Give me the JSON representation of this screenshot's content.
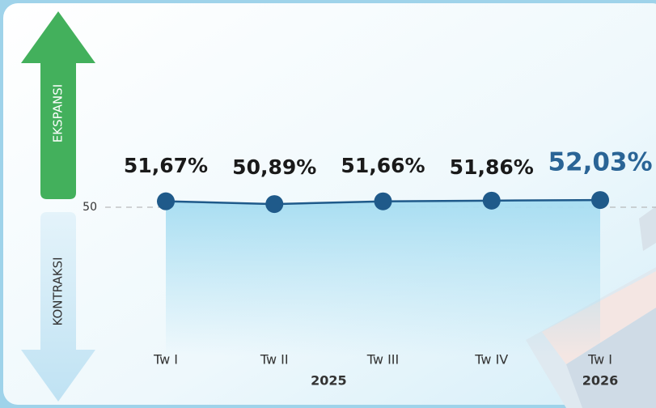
{
  "chart_data": {
    "type": "line",
    "categories": [
      "Tw I",
      "Tw II",
      "Tw III",
      "Tw IV",
      "Tw I"
    ],
    "values": [
      51.67,
      50.89,
      51.66,
      51.86,
      52.03
    ],
    "value_labels": [
      "51,67%",
      "50,89%",
      "51,66%",
      "51,86%",
      "52,03%"
    ],
    "year_labels": [
      "2025",
      "2026"
    ],
    "up_label": "EKSPANSI",
    "down_label": "KONTRAKSI",
    "color": "#1f5a8a",
    "highlight_color": "#2a6496",
    "ylim": [
      0,
      100
    ],
    "yticks": [
      50
    ]
  }
}
